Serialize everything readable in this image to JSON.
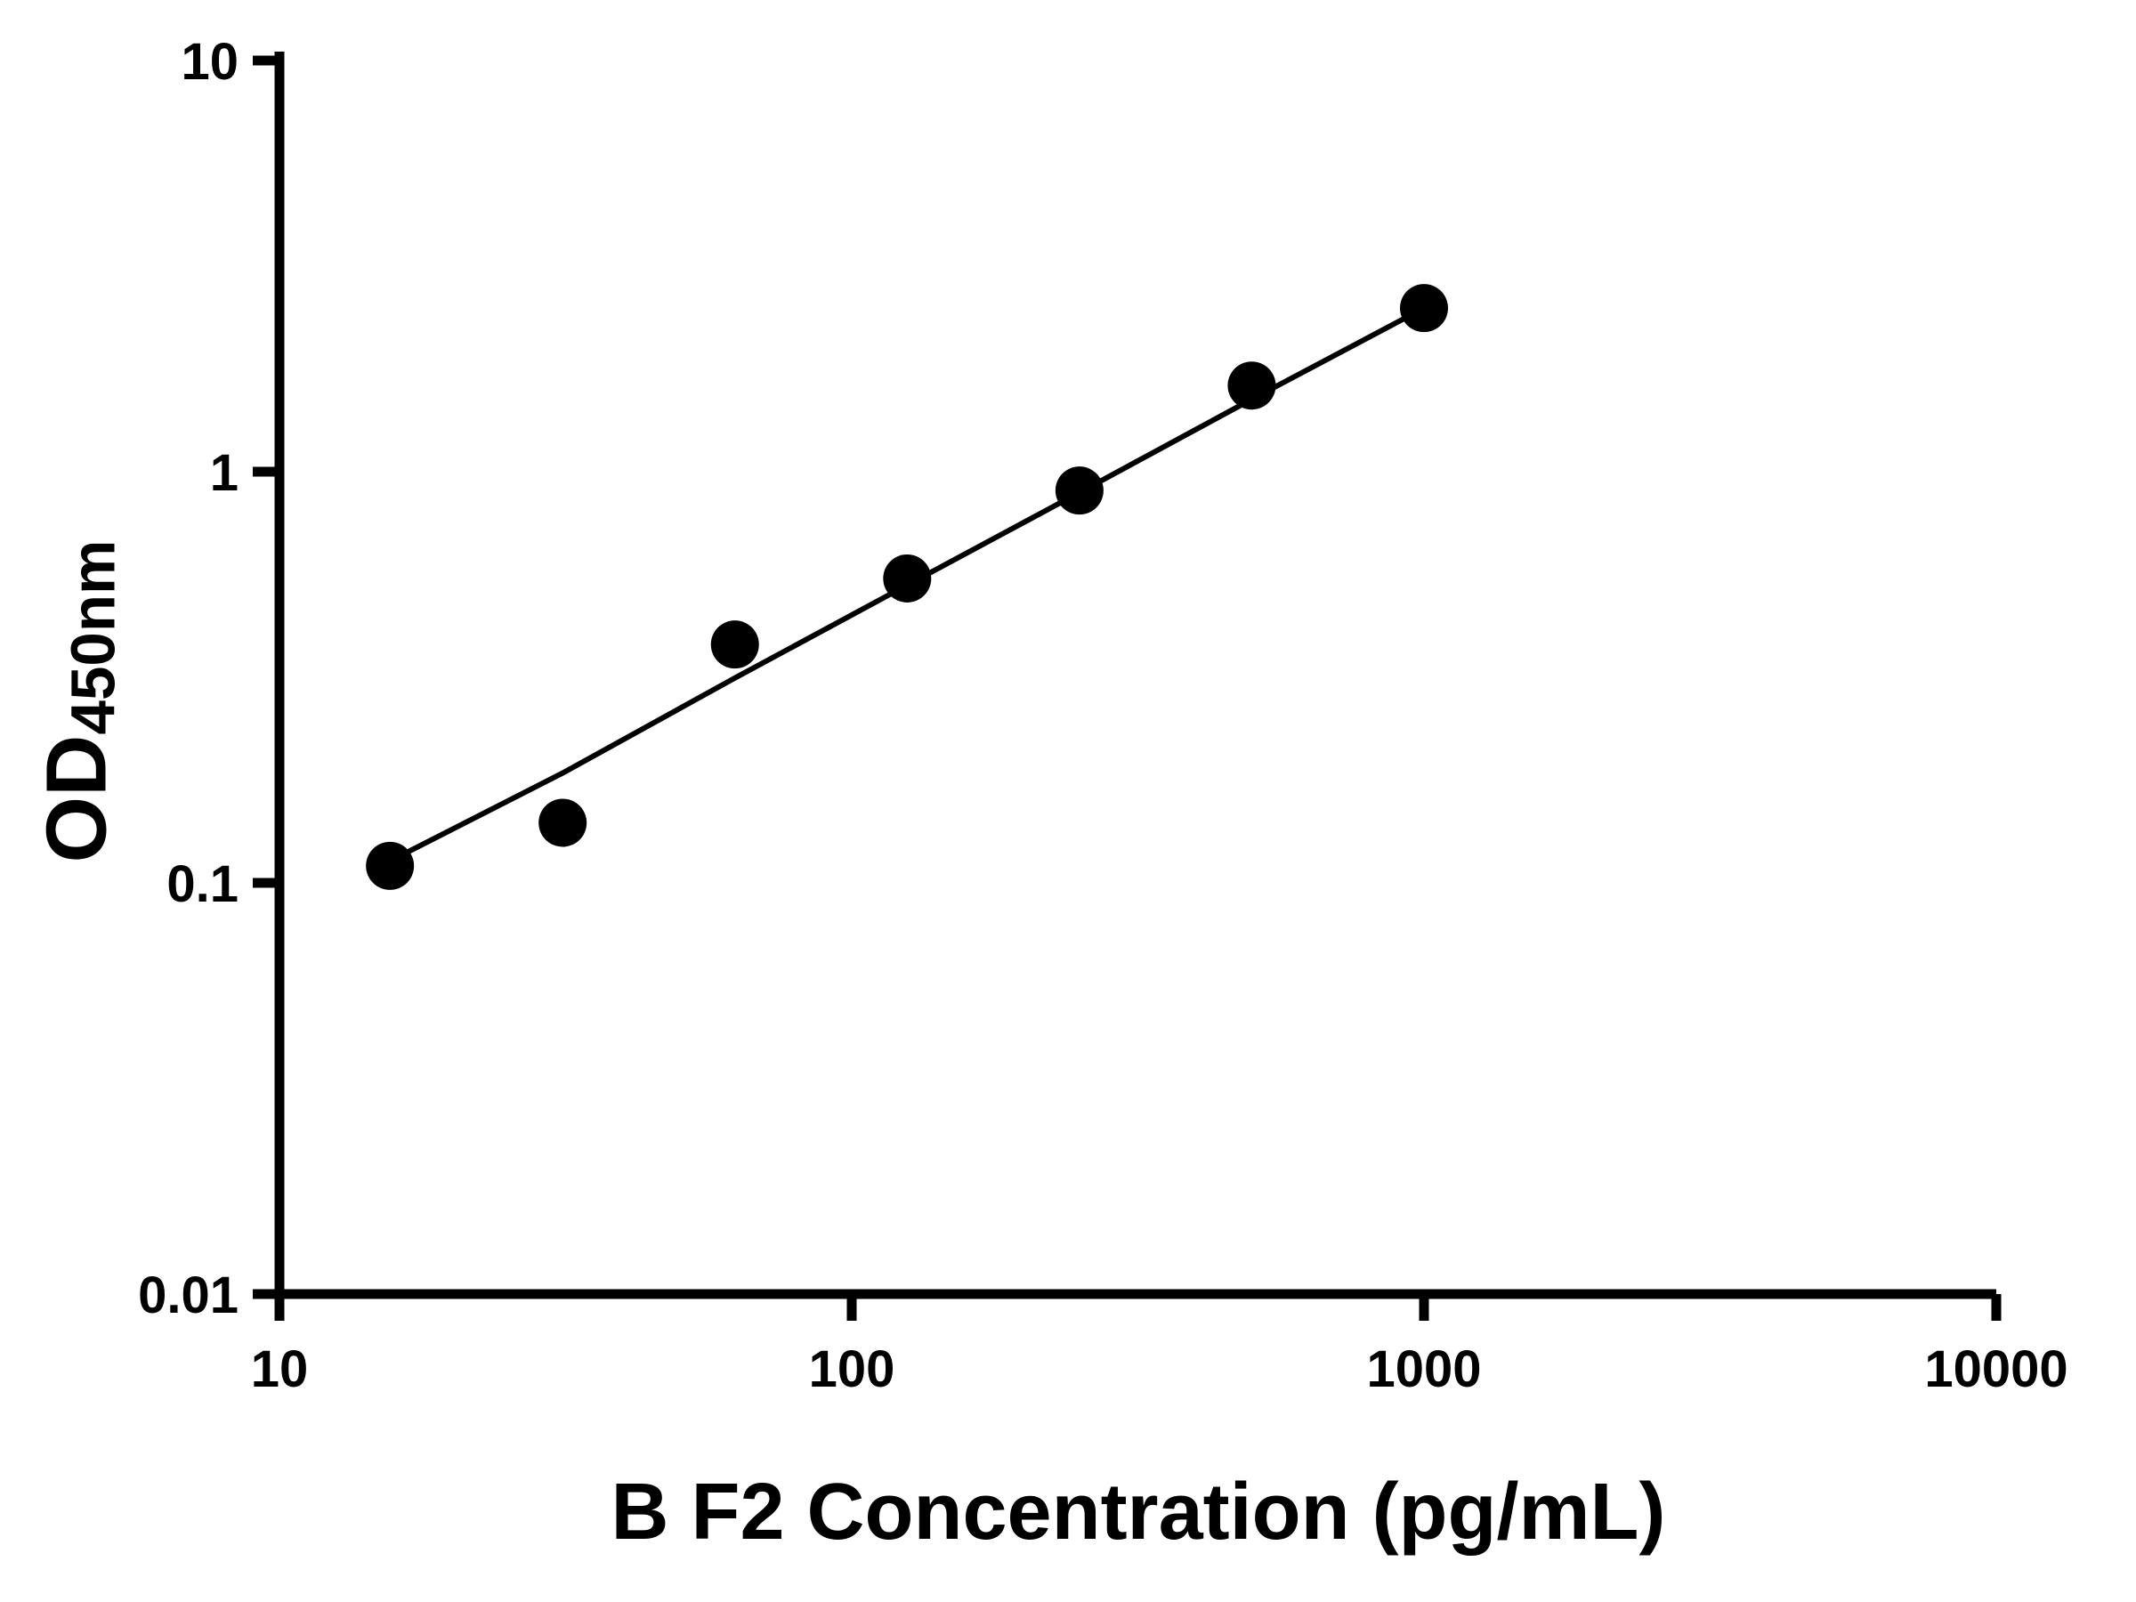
{
  "chart_data": {
    "type": "scatter",
    "title": "",
    "xlabel": "B F2 Concentration (pg/mL)",
    "ylabel": "OD450nm",
    "ylabel_main": "OD",
    "ylabel_sub": "450nm",
    "x_scale": "log",
    "y_scale": "log",
    "xlim": [
      10,
      10000
    ],
    "ylim": [
      0.01,
      10
    ],
    "x_ticks": [
      10,
      100,
      1000,
      10000
    ],
    "x_tick_labels": [
      "10",
      "100",
      "1000",
      "10000"
    ],
    "y_ticks": [
      0.01,
      0.1,
      1,
      10
    ],
    "y_tick_labels": [
      "0.01",
      "0.1",
      "1",
      "10"
    ],
    "grid": false,
    "legend": false,
    "marker_color": "#000000",
    "line_color": "#000000",
    "series": [
      {
        "x": [
          15.6,
          31.25,
          62.5,
          125,
          250,
          500,
          1000
        ],
        "y": [
          0.11,
          0.14,
          0.38,
          0.55,
          0.9,
          1.62,
          2.5
        ]
      }
    ],
    "fit_line": {
      "x": [
        15.6,
        31.25,
        62.5,
        125,
        250,
        500,
        1000
      ],
      "y": [
        0.113,
        0.185,
        0.315,
        0.53,
        0.89,
        1.5,
        2.5
      ]
    }
  }
}
